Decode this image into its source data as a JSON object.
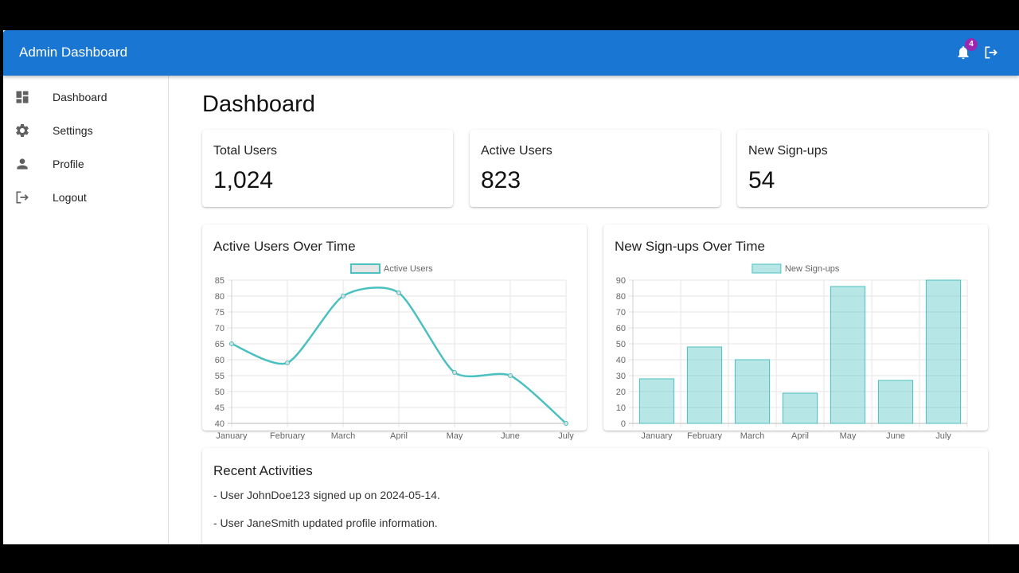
{
  "app": {
    "title": "Admin Dashboard",
    "notification_count": "4",
    "accent": "#1976d2",
    "badge_color": "#9c27b0"
  },
  "sidebar": {
    "items": [
      {
        "label": "Dashboard",
        "icon": "dashboard-icon"
      },
      {
        "label": "Settings",
        "icon": "gear-icon"
      },
      {
        "label": "Profile",
        "icon": "person-icon"
      },
      {
        "label": "Logout",
        "icon": "logout-icon"
      }
    ]
  },
  "main": {
    "title": "Dashboard",
    "stats": [
      {
        "label": "Total Users",
        "value": "1,024"
      },
      {
        "label": "Active Users",
        "value": "823"
      },
      {
        "label": "New Sign-ups",
        "value": "54"
      }
    ],
    "charts": [
      {
        "title": "Active Users Over Time"
      },
      {
        "title": "New Sign-ups Over Time"
      }
    ],
    "activities": {
      "title": "Recent Activities",
      "items": [
        "- User JohnDoe123 signed up on 2024-05-14.",
        "- User JaneSmith updated profile information."
      ]
    }
  },
  "chart_data": [
    {
      "type": "line",
      "title": "Active Users Over Time",
      "categories": [
        "January",
        "February",
        "March",
        "April",
        "May",
        "June",
        "July"
      ],
      "series": [
        {
          "name": "Active Users",
          "values": [
            65,
            59,
            80,
            81,
            56,
            55,
            40
          ],
          "color": "#4bc0c0"
        }
      ],
      "ylim": [
        40,
        85
      ],
      "yticks": [
        40,
        45,
        50,
        55,
        60,
        65,
        70,
        75,
        80,
        85
      ],
      "legend_position": "top",
      "grid": true
    },
    {
      "type": "bar",
      "title": "New Sign-ups Over Time",
      "categories": [
        "January",
        "February",
        "March",
        "April",
        "May",
        "June",
        "July"
      ],
      "series": [
        {
          "name": "New Sign-ups",
          "values": [
            28,
            48,
            40,
            19,
            86,
            27,
            90
          ],
          "color": "#4bc0c0",
          "fill": "rgba(75,192,192,0.4)"
        }
      ],
      "ylim": [
        0,
        90
      ],
      "yticks": [
        0,
        10,
        20,
        30,
        40,
        50,
        60,
        70,
        80,
        90
      ],
      "legend_position": "top",
      "grid": true
    }
  ]
}
